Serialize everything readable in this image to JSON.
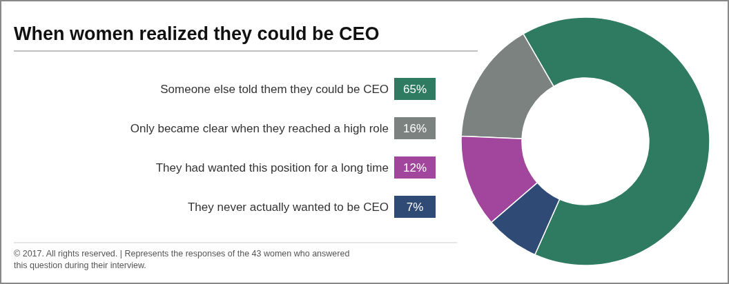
{
  "chart_data": {
    "type": "donut",
    "title": "When women realized they could be CEO",
    "categories": [
      "Someone else told them they could be CEO",
      "Only became clear when they reached a high role",
      "They had wanted this position for a long time",
      "They never actually wanted to be CEO"
    ],
    "values": [
      65,
      16,
      12,
      7
    ],
    "value_labels": [
      "65%",
      "16%",
      "12%",
      "7%"
    ],
    "colors": [
      "#2e7b61",
      "#7b8280",
      "#a1469c",
      "#2f4a75"
    ],
    "legend": "left",
    "annotations": [
      "© 2017. All rights reserved. | Represents the responses of  the 43 women who answered this question during their interview."
    ]
  }
}
